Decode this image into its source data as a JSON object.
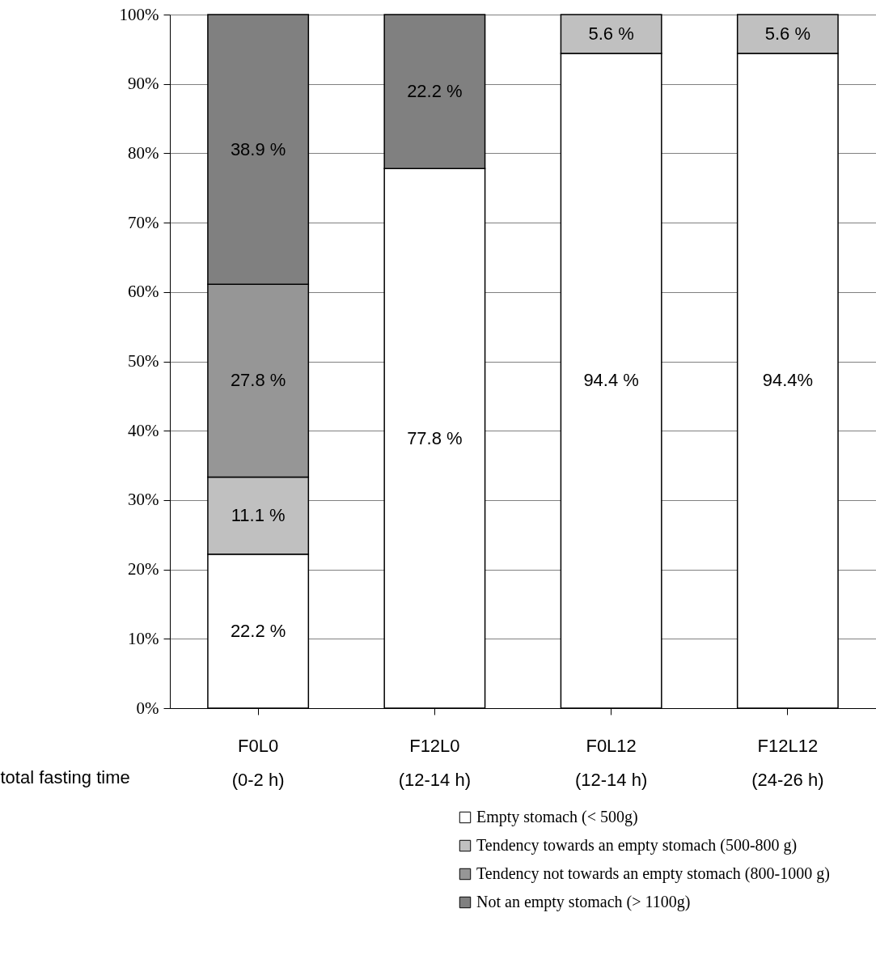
{
  "chart_data": {
    "type": "bar",
    "stacked": true,
    "xlabel": "total fasting time",
    "categories": [
      "F0L0\n(0-2 h)",
      "F12L0\n(12-14 h)",
      "F0L12\n(12-14 h)",
      "F12L12\n(24-26 h)"
    ],
    "series": [
      {
        "name": "Empty stomach (< 500g)",
        "color": "#ffffff",
        "values": [
          22.2,
          77.8,
          94.4,
          94.4
        ],
        "value_labels": [
          "22.2 %",
          "77.8 %",
          "94.4 %",
          "94.4%"
        ]
      },
      {
        "name": "Tendency towards an empty stomach (500-800 g)",
        "color": "#c0c0c0",
        "values": [
          11.1,
          null,
          5.6,
          5.6
        ],
        "value_labels": [
          "11.1 %",
          null,
          "5.6 %",
          "5.6 %"
        ]
      },
      {
        "name": "Tendency not towards an empty stomach (800-1000 g)",
        "color": "#969696",
        "values": [
          27.8,
          null,
          null,
          null
        ],
        "value_labels": [
          "27.8 %",
          null,
          null,
          null
        ]
      },
      {
        "name": "Not an empty stomach (> 1100g)",
        "color": "#808080",
        "values": [
          38.9,
          22.2,
          null,
          null
        ],
        "value_labels": [
          "38.9 %",
          "22.2 %",
          null,
          null
        ]
      }
    ],
    "ylim": [
      0,
      100
    ],
    "yticks": [
      {
        "value": 0,
        "label": "0%"
      },
      {
        "value": 10,
        "label": "10%"
      },
      {
        "value": 20,
        "label": "20%"
      },
      {
        "value": 30,
        "label": "30%"
      },
      {
        "value": 40,
        "label": "40%"
      },
      {
        "value": 50,
        "label": "50%"
      },
      {
        "value": 60,
        "label": "60%"
      },
      {
        "value": 70,
        "label": "70%"
      },
      {
        "value": 80,
        "label": "80%"
      },
      {
        "value": 90,
        "label": "90%"
      },
      {
        "value": 100,
        "label": "100%"
      }
    ],
    "grid": "y",
    "legend": "bottom"
  }
}
